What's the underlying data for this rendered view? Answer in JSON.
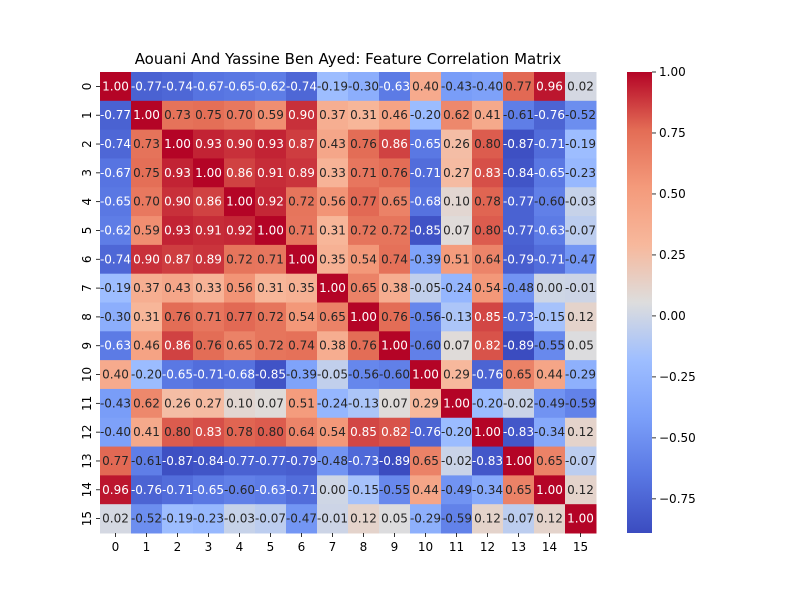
{
  "chart_data": {
    "type": "heatmap",
    "title": "Aouani And Yassine Ben Ayed: Feature Correlation Matrix",
    "row_labels": [
      "0",
      "1",
      "2",
      "3",
      "4",
      "5",
      "6",
      "7",
      "8",
      "9",
      "10",
      "11",
      "12",
      "13",
      "14",
      "15"
    ],
    "col_labels": [
      "0",
      "1",
      "2",
      "3",
      "4",
      "5",
      "6",
      "7",
      "8",
      "9",
      "10",
      "11",
      "12",
      "13",
      "14",
      "15"
    ],
    "values": [
      [
        1.0,
        -0.77,
        -0.74,
        -0.67,
        -0.65,
        -0.62,
        -0.74,
        -0.19,
        -0.3,
        -0.63,
        0.4,
        -0.43,
        -0.4,
        0.77,
        0.96,
        0.02
      ],
      [
        -0.77,
        1.0,
        0.73,
        0.75,
        0.7,
        0.59,
        0.9,
        0.37,
        0.31,
        0.46,
        -0.2,
        0.62,
        0.41,
        -0.61,
        -0.76,
        -0.52
      ],
      [
        -0.74,
        0.73,
        1.0,
        0.93,
        0.9,
        0.93,
        0.87,
        0.43,
        0.76,
        0.86,
        -0.65,
        0.26,
        0.8,
        -0.87,
        -0.71,
        -0.19
      ],
      [
        -0.67,
        0.75,
        0.93,
        1.0,
        0.86,
        0.91,
        0.89,
        0.33,
        0.71,
        0.76,
        -0.71,
        0.27,
        0.83,
        -0.84,
        -0.65,
        -0.23
      ],
      [
        -0.65,
        0.7,
        0.9,
        0.86,
        1.0,
        0.92,
        0.72,
        0.56,
        0.77,
        0.65,
        -0.68,
        0.1,
        0.78,
        -0.77,
        -0.6,
        -0.03
      ],
      [
        -0.62,
        0.59,
        0.93,
        0.91,
        0.92,
        1.0,
        0.71,
        0.31,
        0.72,
        0.72,
        -0.85,
        0.07,
        0.8,
        -0.77,
        -0.63,
        -0.07
      ],
      [
        -0.74,
        0.9,
        0.87,
        0.89,
        0.72,
        0.71,
        1.0,
        0.35,
        0.54,
        0.74,
        -0.39,
        0.51,
        0.64,
        -0.79,
        -0.71,
        -0.47
      ],
      [
        -0.19,
        0.37,
        0.43,
        0.33,
        0.56,
        0.31,
        0.35,
        1.0,
        0.65,
        0.38,
        -0.05,
        -0.24,
        0.54,
        -0.48,
        0.0,
        -0.01
      ],
      [
        -0.3,
        0.31,
        0.76,
        0.71,
        0.77,
        0.72,
        0.54,
        0.65,
        1.0,
        0.76,
        -0.56,
        -0.13,
        0.85,
        -0.73,
        -0.15,
        0.12
      ],
      [
        -0.63,
        0.46,
        0.86,
        0.76,
        0.65,
        0.72,
        0.74,
        0.38,
        0.76,
        1.0,
        -0.6,
        0.07,
        0.82,
        -0.89,
        -0.55,
        0.05
      ],
      [
        0.4,
        -0.2,
        -0.65,
        -0.71,
        -0.68,
        -0.85,
        -0.39,
        -0.05,
        -0.56,
        -0.6,
        1.0,
        0.29,
        -0.76,
        0.65,
        0.44,
        -0.29
      ],
      [
        -0.43,
        0.62,
        0.26,
        0.27,
        0.1,
        0.07,
        0.51,
        -0.24,
        -0.13,
        0.07,
        0.29,
        1.0,
        -0.2,
        -0.02,
        -0.49,
        -0.59
      ],
      [
        -0.4,
        0.41,
        0.8,
        0.83,
        0.78,
        0.8,
        0.64,
        0.54,
        0.85,
        0.82,
        -0.76,
        -0.2,
        1.0,
        -0.83,
        -0.34,
        0.12
      ],
      [
        0.77,
        -0.61,
        -0.87,
        -0.84,
        -0.77,
        -0.77,
        -0.79,
        -0.48,
        -0.73,
        -0.89,
        0.65,
        -0.02,
        -0.83,
        1.0,
        0.65,
        -0.07
      ],
      [
        0.96,
        -0.76,
        -0.71,
        -0.65,
        -0.6,
        -0.63,
        -0.71,
        0.0,
        -0.15,
        -0.55,
        0.44,
        -0.49,
        -0.34,
        0.65,
        1.0,
        0.12
      ],
      [
        0.02,
        -0.52,
        -0.19,
        -0.23,
        -0.03,
        -0.07,
        -0.47,
        -0.01,
        0.12,
        0.05,
        -0.29,
        -0.59,
        0.12,
        -0.07,
        0.12,
        1.0
      ]
    ],
    "vmin": -0.89,
    "vmax": 1.0,
    "colormap": "coolwarm",
    "colorbar_ticks": [
      1.0,
      0.75,
      0.5,
      0.25,
      0.0,
      -0.25,
      -0.5,
      -0.75
    ],
    "colorbar_tick_labels": [
      "1.00",
      "0.75",
      "0.50",
      "0.25",
      "0.00",
      "−0.25",
      "−0.50",
      "−0.75"
    ],
    "annotate": true,
    "grid": false
  }
}
